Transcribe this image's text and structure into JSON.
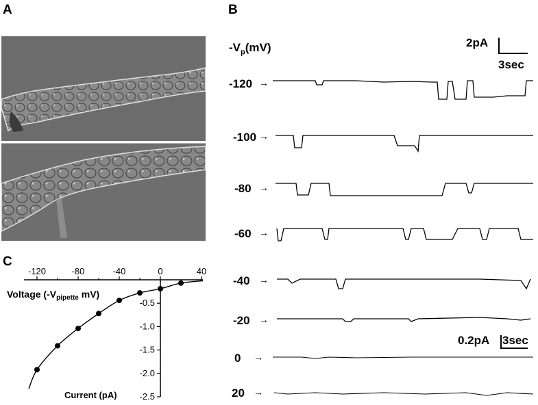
{
  "panels": {
    "a": "A",
    "b": "B",
    "c": "C"
  },
  "panel_b": {
    "column_header_prefix": "-V",
    "column_header_sub": "p",
    "column_header_suffix": "(mV)",
    "scale_bar_large": {
      "current": "2pA",
      "time": "3sec"
    },
    "scale_bar_small": {
      "current": "0.2pA",
      "time": "3sec"
    },
    "traces": [
      {
        "voltage": "-120",
        "arrow": "→"
      },
      {
        "voltage": "-100",
        "arrow": "→"
      },
      {
        "voltage": "-80",
        "arrow": "→"
      },
      {
        "voltage": "-60",
        "arrow": "→"
      },
      {
        "voltage": "-40",
        "arrow": "→"
      },
      {
        "voltage": "-20",
        "arrow": "→"
      },
      {
        "voltage": "0",
        "arrow": "→"
      },
      {
        "voltage": "20",
        "arrow": "→"
      }
    ]
  },
  "chart_data": {
    "type": "scatter",
    "xlabel_main": "Voltage (-V",
    "xlabel_sub": "pipette",
    "xlabel_end": " mV)",
    "ylabel": "Current (pA)",
    "xlim": [
      -130,
      40
    ],
    "ylim": [
      -2.5,
      0
    ],
    "x_ticks": [
      -120,
      -80,
      -40,
      0,
      40
    ],
    "x_tick_labels": [
      "-120",
      "-80",
      "-40",
      "0",
      "40"
    ],
    "y_ticks": [
      -0.5,
      -1.0,
      -1.5,
      -2.0,
      -2.5
    ],
    "y_tick_labels": [
      "-0.5",
      "-1.0",
      "-1.5",
      "-2.0",
      "-2.5"
    ],
    "points": [
      {
        "x": -120,
        "y": -1.92
      },
      {
        "x": -100,
        "y": -1.41
      },
      {
        "x": -80,
        "y": -1.04
      },
      {
        "x": -60,
        "y": -0.72
      },
      {
        "x": -40,
        "y": -0.44
      },
      {
        "x": -20,
        "y": -0.28
      },
      {
        "x": 0,
        "y": -0.19
      },
      {
        "x": 20,
        "y": -0.07
      }
    ],
    "fit_curve": "smooth",
    "grid": false,
    "colors": {
      "points": "#000000",
      "line": "#000000"
    }
  }
}
